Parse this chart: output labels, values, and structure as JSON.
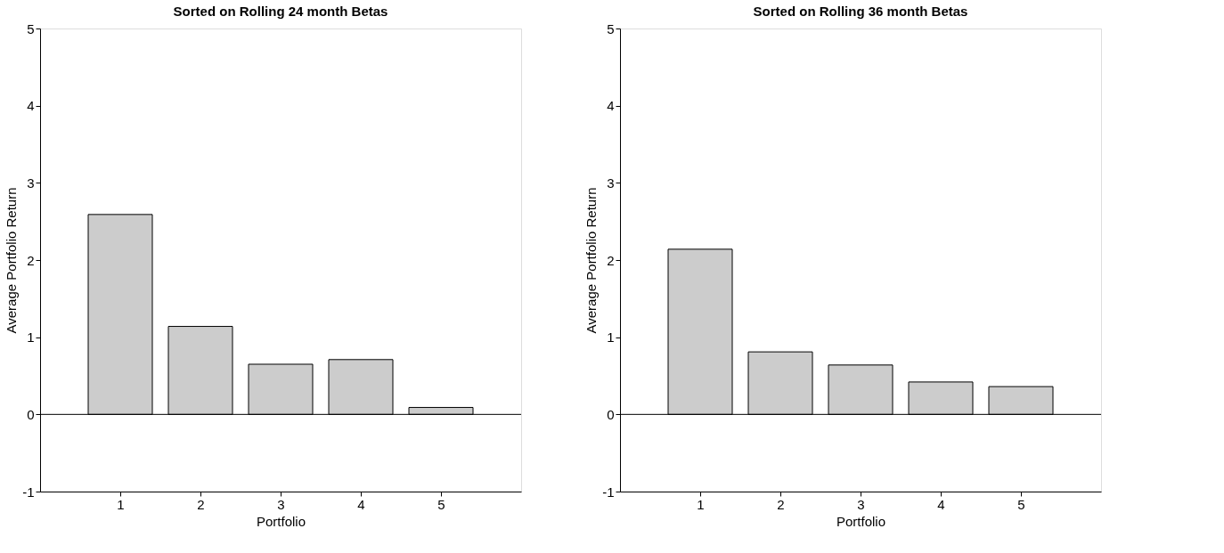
{
  "chart_data": [
    {
      "type": "bar",
      "title": "Sorted on Rolling 24 month Betas",
      "xlabel": "Portfolio",
      "ylabel": "Average Portfolio Return",
      "x": [
        1,
        2,
        3,
        4,
        5
      ],
      "values": [
        2.59,
        1.14,
        0.65,
        0.71,
        0.09
      ],
      "color": "#cccccc",
      "xlim": [
        0,
        6
      ],
      "xticks": [
        1,
        2,
        3,
        4,
        5
      ],
      "ylim": [
        -1,
        5
      ],
      "yticks": [
        -1,
        0,
        1,
        2,
        3,
        4,
        5
      ],
      "grid": false,
      "ref_lines": [
        {
          "axis": "y",
          "value": 0,
          "color": "#000000"
        }
      ]
    },
    {
      "type": "bar",
      "title": "Sorted on Rolling 36 month Betas",
      "xlabel": "Portfolio",
      "ylabel": "Average Portfolio Return",
      "x": [
        1,
        2,
        3,
        4,
        5
      ],
      "values": [
        2.14,
        0.81,
        0.64,
        0.42,
        0.36
      ],
      "color": "#cccccc",
      "xlim": [
        0,
        6
      ],
      "xticks": [
        1,
        2,
        3,
        4,
        5
      ],
      "ylim": [
        -1,
        5
      ],
      "yticks": [
        -1,
        0,
        1,
        2,
        3,
        4,
        5
      ],
      "grid": false,
      "ref_lines": [
        {
          "axis": "y",
          "value": 0,
          "color": "#000000"
        }
      ]
    }
  ]
}
